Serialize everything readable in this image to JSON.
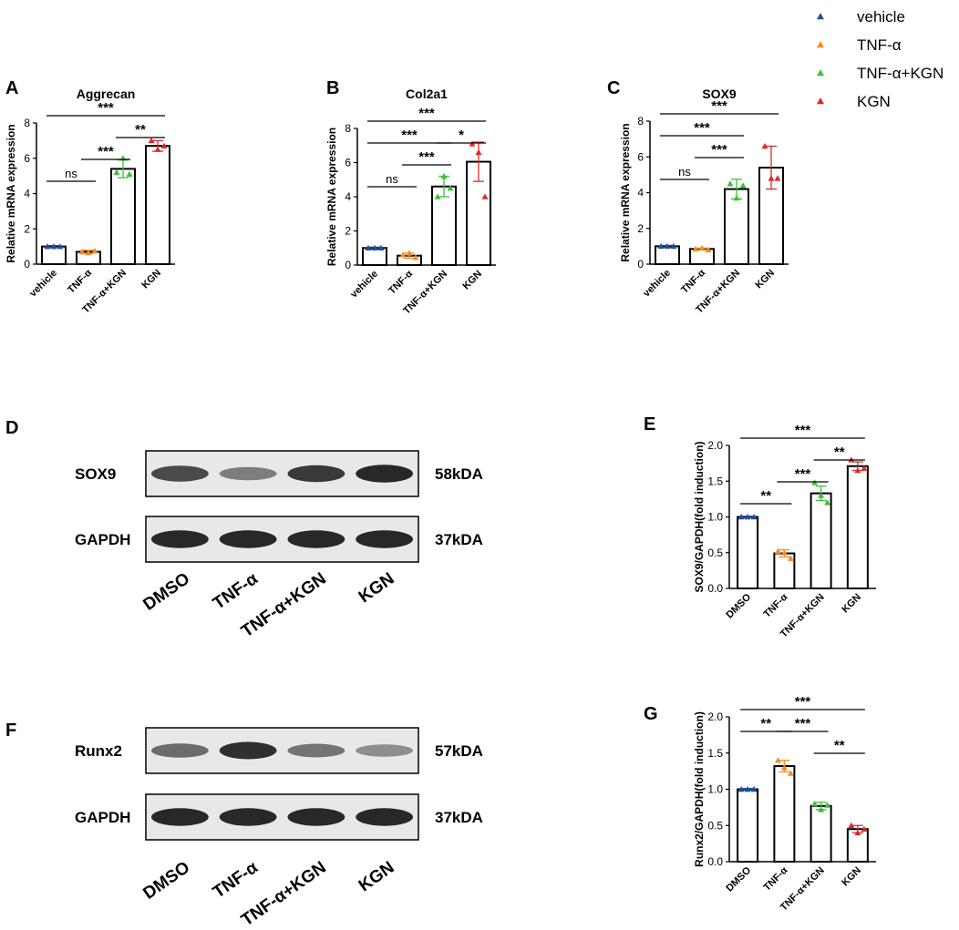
{
  "legend": [
    {
      "label": "vehicle",
      "color": "#1f4e9c"
    },
    {
      "label": "TNF-α",
      "color": "#f28c28"
    },
    {
      "label": "TNF-α+KGN",
      "color": "#3cbf3c"
    },
    {
      "label": "KGN",
      "color": "#e02828"
    }
  ],
  "blots": [
    {
      "panel": "D",
      "rows": [
        {
          "protein": "SOX9",
          "size": "58kDA",
          "intensities": [
            0.75,
            0.45,
            0.85,
            0.95
          ]
        },
        {
          "protein": "GAPDH",
          "size": "37kDA",
          "intensities": [
            0.95,
            0.95,
            0.95,
            0.95
          ]
        }
      ],
      "lanes": [
        "DMSO",
        "TNF-α",
        "TNF-α+KGN",
        "KGN"
      ]
    },
    {
      "panel": "F",
      "rows": [
        {
          "protein": "Runx2",
          "size": "57kDA",
          "intensities": [
            0.55,
            0.9,
            0.5,
            0.35
          ]
        },
        {
          "protein": "GAPDH",
          "size": "37kDA",
          "intensities": [
            0.95,
            0.95,
            0.95,
            0.95
          ]
        }
      ],
      "lanes": [
        "DMSO",
        "TNF-α",
        "TNF-α+KGN",
        "KGN"
      ]
    }
  ],
  "chart_data": [
    {
      "panel": "A",
      "type": "bar",
      "title": "Aggrecan",
      "xlabel": "",
      "ylabel": "Relative mRNA expression",
      "categories": [
        "vehicle",
        "TNF-α",
        "TNF-α+KGN",
        "KGN"
      ],
      "values": [
        1.0,
        0.7,
        5.4,
        6.7
      ],
      "errors": [
        0.05,
        0.1,
        0.5,
        0.3
      ],
      "points": [
        [
          1.0,
          1.0,
          1.0
        ],
        [
          0.7,
          0.65,
          0.75
        ],
        [
          5.2,
          6.0,
          5.1
        ],
        [
          7.0,
          6.5,
          6.7
        ]
      ],
      "ylim": [
        0,
        8
      ],
      "yticks": [
        0,
        2,
        4,
        6,
        8
      ],
      "colors": [
        "#1f4e9c",
        "#f28c28",
        "#3cbf3c",
        "#e02828"
      ],
      "significance": [
        {
          "from": 0,
          "to": 1,
          "label": "ns",
          "level": 0
        },
        {
          "from": 1,
          "to": 2,
          "label": "***",
          "level": 1
        },
        {
          "from": 2,
          "to": 3,
          "label": "**",
          "level": 2
        },
        {
          "from": 0,
          "to": 3,
          "label": "***",
          "level": 3
        }
      ]
    },
    {
      "panel": "B",
      "type": "bar",
      "title": "Col2a1",
      "xlabel": "",
      "ylabel": "Relative mRNA expression",
      "categories": [
        "vehicle",
        "TNF-α",
        "TNF-α+KGN",
        "KGN"
      ],
      "values": [
        1.0,
        0.55,
        4.6,
        6.05
      ],
      "errors": [
        0.05,
        0.15,
        0.6,
        1.15
      ],
      "points": [
        [
          1.0,
          1.0,
          1.0
        ],
        [
          0.6,
          0.7,
          0.45
        ],
        [
          4.0,
          5.2,
          4.5
        ],
        [
          7.1,
          6.6,
          4.0
        ]
      ],
      "ylim": [
        0,
        8
      ],
      "yticks": [
        0,
        2,
        4,
        6,
        8
      ],
      "colors": [
        "#1f4e9c",
        "#f28c28",
        "#3cbf3c",
        "#e02828"
      ],
      "significance": [
        {
          "from": 0,
          "to": 1,
          "label": "ns",
          "level": 0
        },
        {
          "from": 1,
          "to": 2,
          "label": "***",
          "level": 1
        },
        {
          "from": 0,
          "to": 2,
          "label": "***",
          "level": 2
        },
        {
          "from": 2,
          "to": 3,
          "label": "*",
          "level": 2
        },
        {
          "from": 0,
          "to": 3,
          "label": "***",
          "level": 3
        }
      ]
    },
    {
      "panel": "C",
      "type": "bar",
      "title": "SOX9",
      "xlabel": "",
      "ylabel": "Relative mRNA expression",
      "categories": [
        "vehicle",
        "TNF-α",
        "TNF-α+KGN",
        "KGN"
      ],
      "values": [
        1.0,
        0.85,
        4.2,
        5.4
      ],
      "errors": [
        0.05,
        0.05,
        0.55,
        1.2
      ],
      "points": [
        [
          1.0,
          1.0,
          1.0
        ],
        [
          0.85,
          0.9,
          0.8
        ],
        [
          4.5,
          3.7,
          4.4
        ],
        [
          6.6,
          4.8,
          4.8
        ]
      ],
      "ylim": [
        0,
        8
      ],
      "yticks": [
        0,
        2,
        4,
        6,
        8
      ],
      "colors": [
        "#1f4e9c",
        "#f28c28",
        "#3cbf3c",
        "#e02828"
      ],
      "significance": [
        {
          "from": 0,
          "to": 1,
          "label": "ns",
          "level": 0
        },
        {
          "from": 1,
          "to": 2,
          "label": "***",
          "level": 1
        },
        {
          "from": 0,
          "to": 2,
          "label": "***",
          "level": 2
        },
        {
          "from": 0,
          "to": 3,
          "label": "***",
          "level": 3
        }
      ]
    },
    {
      "panel": "E",
      "type": "bar",
      "title": "",
      "xlabel": "",
      "ylabel": "SOX9/GAPDH(fold induction)",
      "categories": [
        "DMSO",
        "TNF-α",
        "TNF-α+KGN",
        "KGN"
      ],
      "values": [
        1.0,
        0.49,
        1.33,
        1.71
      ],
      "errors": [
        0.01,
        0.05,
        0.1,
        0.06
      ],
      "points": [
        [
          1.0,
          1.0,
          1.0
        ],
        [
          0.52,
          0.5,
          0.42
        ],
        [
          1.48,
          1.3,
          1.2
        ],
        [
          1.8,
          1.65,
          1.68
        ]
      ],
      "ylim": [
        0,
        2.0
      ],
      "yticks": [
        0.0,
        0.5,
        1.0,
        1.5,
        2.0
      ],
      "colors": [
        "#1f4e9c",
        "#f28c28",
        "#3cbf3c",
        "#e02828"
      ],
      "significance": [
        {
          "from": 0,
          "to": 1,
          "label": "**",
          "level": 0
        },
        {
          "from": 1,
          "to": 2,
          "label": "***",
          "level": 1
        },
        {
          "from": 2,
          "to": 3,
          "label": "**",
          "level": 2
        },
        {
          "from": 0,
          "to": 3,
          "label": "***",
          "level": 3
        }
      ]
    },
    {
      "panel": "G",
      "type": "bar",
      "title": "",
      "xlabel": "",
      "ylabel": "Runx2/GAPDH(fold induction)",
      "categories": [
        "DMSO",
        "TNF-α",
        "TNF-α+KGN",
        "KGN"
      ],
      "values": [
        1.0,
        1.32,
        0.77,
        0.45
      ],
      "errors": [
        0.01,
        0.08,
        0.05,
        0.05
      ],
      "points": [
        [
          1.0,
          1.0,
          1.0
        ],
        [
          1.4,
          1.3,
          1.22
        ],
        [
          0.8,
          0.72,
          0.78
        ],
        [
          0.5,
          0.4,
          0.45
        ]
      ],
      "ylim": [
        0,
        2.0
      ],
      "yticks": [
        0.0,
        0.5,
        1.0,
        1.5,
        2.0
      ],
      "colors": [
        "#1f4e9c",
        "#f28c28",
        "#3cbf3c",
        "#e02828"
      ],
      "significance": [
        {
          "from": 0,
          "to": 1,
          "label": "**",
          "level": 2
        },
        {
          "from": 1,
          "to": 2,
          "label": "***",
          "level": 2
        },
        {
          "from": 2,
          "to": 3,
          "label": "**",
          "level": 1
        },
        {
          "from": 0,
          "to": 3,
          "label": "***",
          "level": 3
        }
      ]
    }
  ]
}
